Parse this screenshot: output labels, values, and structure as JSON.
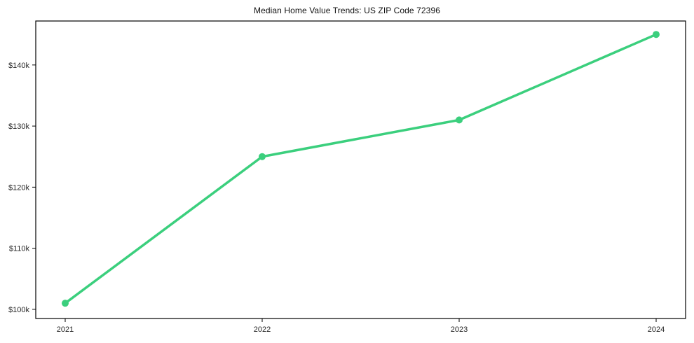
{
  "chart_data": {
    "type": "line",
    "title": "Median Home Value Trends: US ZIP Code 72396",
    "categories": [
      "2021",
      "2022",
      "2023",
      "2024"
    ],
    "series": [
      {
        "name": "Median Home Value",
        "values": [
          101000,
          125000,
          131000,
          145000
        ]
      }
    ],
    "xlabel": "",
    "ylabel": "",
    "ylim": [
      98500,
      147200
    ],
    "yticks": {
      "values": [
        100000,
        110000,
        120000,
        130000,
        140000
      ],
      "labels": [
        "$100k",
        "$110k",
        "$120k",
        "$130k",
        "$140k"
      ]
    },
    "grid": "off",
    "legend": "none",
    "line_color": "#3bcf7d",
    "marker": "circle",
    "frame_color": "#000000",
    "background_color": "#ffffff"
  }
}
